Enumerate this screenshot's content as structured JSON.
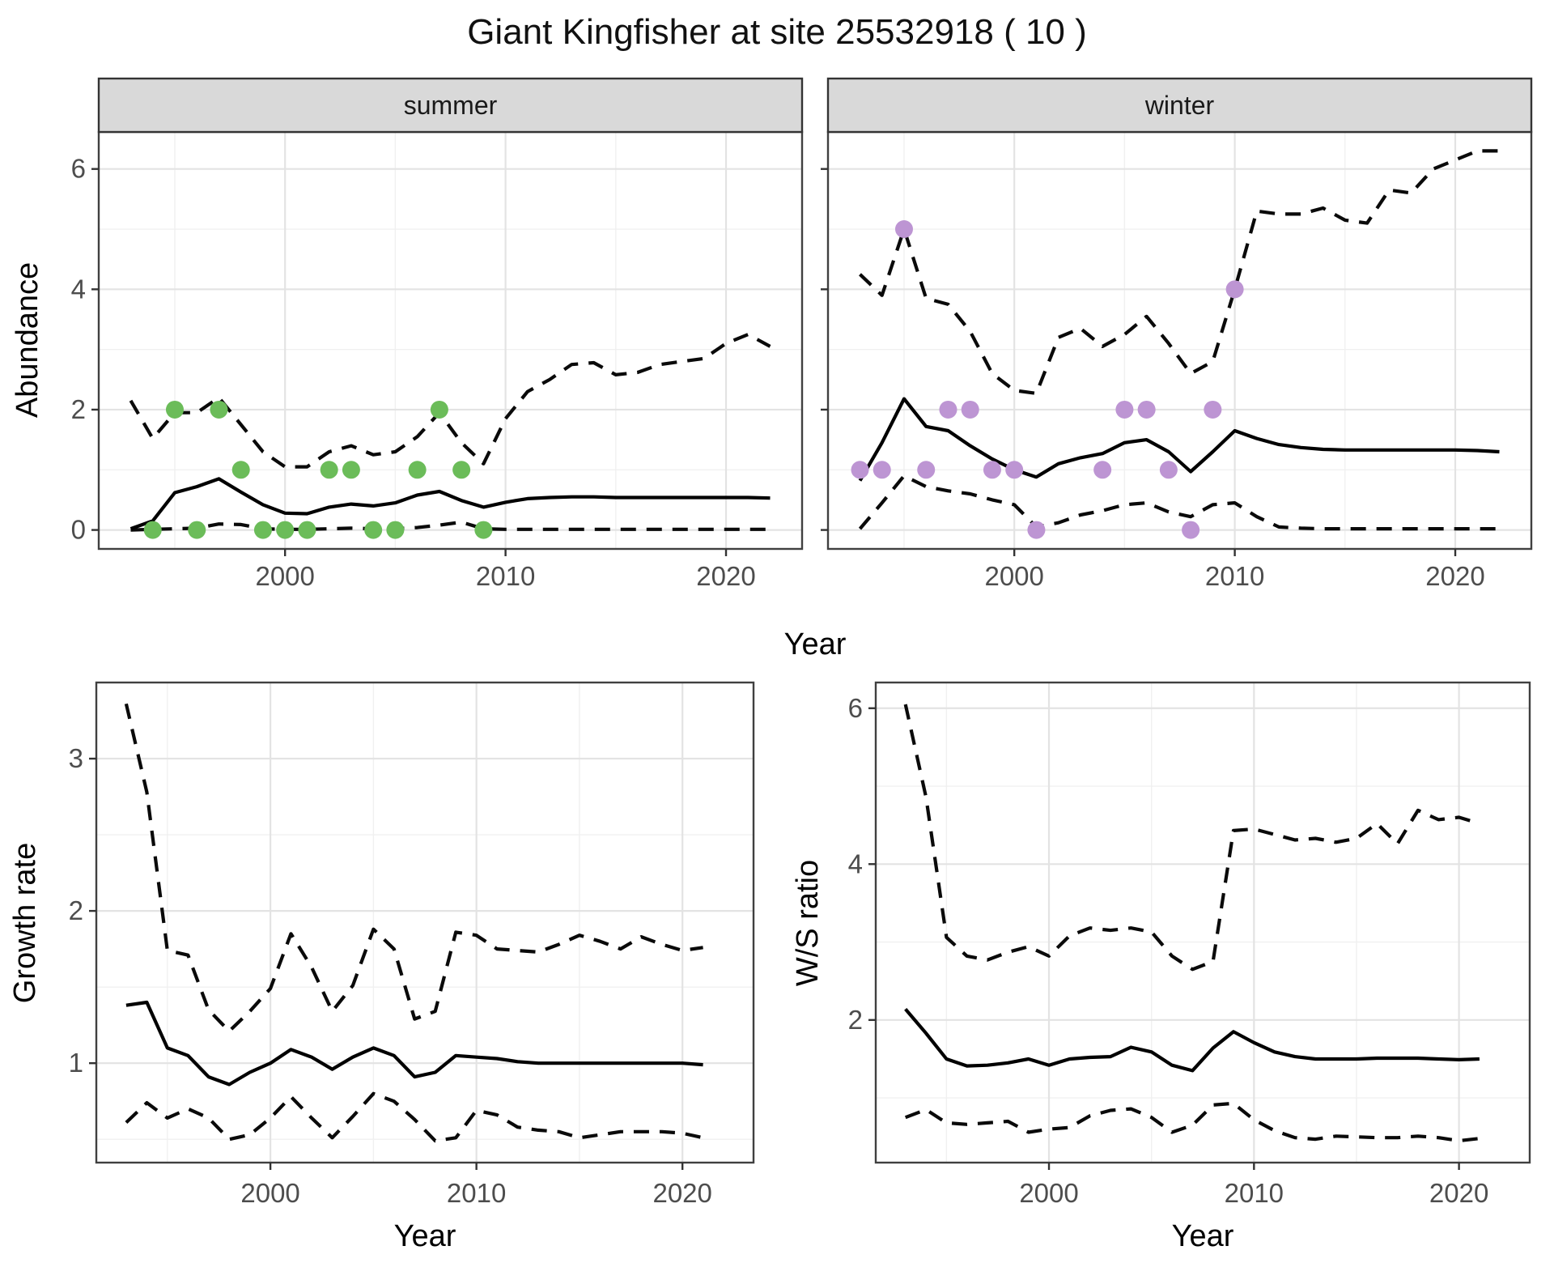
{
  "title": "Giant Kingfisher at site 25532918 ( 10 )",
  "axes": {
    "x_label": "Year",
    "abundance_label": "Abundance",
    "growth_label": "Growth rate",
    "ws_label": "W/S ratio"
  },
  "facets": {
    "summer": "summer",
    "winter": "winter"
  },
  "colors": {
    "summer_points": "#6bbc59",
    "winter_points": "#bd95d3",
    "line": "#000000",
    "ci_line": "#0a0a0a",
    "grid_major": "#e3e3e3",
    "grid_minor": "#f0f0f0",
    "strip_fill": "#d9d9d9",
    "strip_border": "#333333",
    "panel_border": "#404040",
    "tick_text": "#4d4d4d",
    "tick_mark": "#333333",
    "background": "#ffffff"
  },
  "chart_data": [
    {
      "id": "summer",
      "type": "line",
      "facet_label": "summer",
      "xlabel": "Year",
      "ylabel": "Abundance",
      "xlim": [
        1991.55,
        2023.45
      ],
      "ylim": [
        -0.315,
        6.615
      ],
      "x_major": [
        2000,
        2010,
        2020
      ],
      "x_major_labels": [
        "2000",
        "2010",
        "2020"
      ],
      "x_minor": [
        1995,
        2005,
        2015
      ],
      "y_major": [
        0,
        2,
        4,
        6
      ],
      "y_major_labels": [
        "0",
        "2",
        "4",
        "6"
      ],
      "y_minor": [
        1,
        3,
        5
      ],
      "show_y_tick_labels": true,
      "legend": "none",
      "grid": "on",
      "point_color": "#6bbc59",
      "years": [
        1993,
        1994,
        1995,
        1996,
        1997,
        1998,
        1999,
        2000,
        2001,
        2002,
        2003,
        2004,
        2005,
        2006,
        2007,
        2008,
        2009,
        2010,
        2011,
        2012,
        2013,
        2014,
        2015,
        2016,
        2017,
        2018,
        2019,
        2020,
        2021,
        2022
      ],
      "mean": [
        0.02,
        0.15,
        0.62,
        0.72,
        0.85,
        0.63,
        0.42,
        0.28,
        0.27,
        0.38,
        0.43,
        0.4,
        0.45,
        0.58,
        0.64,
        0.49,
        0.38,
        0.46,
        0.52,
        0.54,
        0.55,
        0.55,
        0.54,
        0.54,
        0.54,
        0.54,
        0.54,
        0.54,
        0.54,
        0.53
      ],
      "upper_ci": [
        2.15,
        1.52,
        1.95,
        1.95,
        2.2,
        1.75,
        1.3,
        1.05,
        1.05,
        1.3,
        1.4,
        1.25,
        1.3,
        1.55,
        1.95,
        1.45,
        1.1,
        1.85,
        2.3,
        2.5,
        2.75,
        2.78,
        2.58,
        2.62,
        2.75,
        2.8,
        2.85,
        3.1,
        3.25,
        3.05
      ],
      "lower_ci": [
        0.0,
        0.01,
        0.02,
        0.03,
        0.1,
        0.09,
        0.02,
        0.01,
        0.01,
        0.02,
        0.03,
        0.02,
        0.02,
        0.04,
        0.08,
        0.13,
        0.02,
        0.01,
        0.01,
        0.01,
        0.01,
        0.01,
        0.01,
        0.01,
        0.01,
        0.01,
        0.01,
        0.01,
        0.01,
        0.01
      ],
      "observations": [
        [
          1994,
          0
        ],
        [
          1995,
          2
        ],
        [
          1996,
          0
        ],
        [
          1997,
          2
        ],
        [
          1998,
          1
        ],
        [
          1999,
          0
        ],
        [
          2000,
          0
        ],
        [
          2001,
          0
        ],
        [
          2002,
          1
        ],
        [
          2003,
          1
        ],
        [
          2004,
          0
        ],
        [
          2005,
          0
        ],
        [
          2006,
          1
        ],
        [
          2007,
          2
        ],
        [
          2008,
          1
        ],
        [
          2009,
          0
        ]
      ]
    },
    {
      "id": "winter",
      "type": "line",
      "facet_label": "winter",
      "xlabel": "Year",
      "ylabel": "Abundance",
      "xlim": [
        1991.55,
        2023.45
      ],
      "ylim": [
        -0.315,
        6.615
      ],
      "x_major": [
        2000,
        2010,
        2020
      ],
      "x_major_labels": [
        "2000",
        "2010",
        "2020"
      ],
      "x_minor": [
        1995,
        2005,
        2015
      ],
      "y_major": [
        0,
        2,
        4,
        6
      ],
      "y_major_labels": [
        "0",
        "2",
        "4",
        "6"
      ],
      "y_minor": [
        1,
        3,
        5
      ],
      "show_y_tick_labels": false,
      "legend": "none",
      "grid": "on",
      "point_color": "#bd95d3",
      "years": [
        1993,
        1994,
        1995,
        1996,
        1997,
        1998,
        1999,
        2000,
        2001,
        2002,
        2003,
        2004,
        2005,
        2006,
        2007,
        2008,
        2009,
        2010,
        2011,
        2012,
        2013,
        2014,
        2015,
        2016,
        2017,
        2018,
        2019,
        2020,
        2021,
        2022
      ],
      "mean": [
        0.82,
        1.45,
        2.18,
        1.72,
        1.65,
        1.4,
        1.18,
        1.0,
        0.88,
        1.1,
        1.2,
        1.27,
        1.45,
        1.5,
        1.3,
        0.97,
        1.3,
        1.65,
        1.52,
        1.42,
        1.37,
        1.34,
        1.33,
        1.33,
        1.33,
        1.33,
        1.33,
        1.33,
        1.32,
        1.3
      ],
      "upper_ci": [
        4.25,
        3.9,
        5.0,
        3.85,
        3.75,
        3.3,
        2.6,
        2.32,
        2.27,
        3.2,
        3.35,
        3.05,
        3.25,
        3.55,
        3.1,
        2.6,
        2.8,
        4.0,
        5.3,
        5.25,
        5.25,
        5.35,
        5.15,
        5.1,
        5.65,
        5.6,
        6.0,
        6.15,
        6.3,
        6.3
      ],
      "lower_ci": [
        0.02,
        0.45,
        0.9,
        0.72,
        0.65,
        0.6,
        0.5,
        0.42,
        0.05,
        0.12,
        0.25,
        0.32,
        0.42,
        0.45,
        0.3,
        0.22,
        0.42,
        0.45,
        0.22,
        0.05,
        0.03,
        0.02,
        0.02,
        0.02,
        0.02,
        0.02,
        0.02,
        0.02,
        0.02,
        0.02
      ],
      "observations": [
        [
          1993,
          1
        ],
        [
          1994,
          1
        ],
        [
          1995,
          5
        ],
        [
          1996,
          1
        ],
        [
          1997,
          2
        ],
        [
          1998,
          2
        ],
        [
          1999,
          1
        ],
        [
          2000,
          1
        ],
        [
          2001,
          0
        ],
        [
          2004,
          1
        ],
        [
          2005,
          2
        ],
        [
          2006,
          2
        ],
        [
          2007,
          1
        ],
        [
          2008,
          0
        ],
        [
          2009,
          2
        ],
        [
          2010,
          4
        ]
      ]
    },
    {
      "id": "growth",
      "type": "line",
      "facet_label": null,
      "xlabel": "Year",
      "ylabel": "Growth rate",
      "xlim": [
        1991.55,
        2023.45
      ],
      "ylim": [
        0.347,
        3.5
      ],
      "x_major": [
        2000,
        2010,
        2020
      ],
      "x_major_labels": [
        "2000",
        "2010",
        "2020"
      ],
      "x_minor": [
        1995,
        2005,
        2015
      ],
      "y_major": [
        1,
        2,
        3
      ],
      "y_major_labels": [
        "1",
        "2",
        "3"
      ],
      "y_minor": [
        0.5,
        1.5,
        2.5
      ],
      "show_y_tick_labels": true,
      "legend": "none",
      "grid": "on",
      "point_color": null,
      "years": [
        1993,
        1994,
        1995,
        1996,
        1997,
        1998,
        1999,
        2000,
        2001,
        2002,
        2003,
        2004,
        2005,
        2006,
        2007,
        2008,
        2009,
        2010,
        2011,
        2012,
        2013,
        2014,
        2015,
        2016,
        2017,
        2018,
        2019,
        2020,
        2021
      ],
      "mean": [
        1.38,
        1.4,
        1.1,
        1.05,
        0.91,
        0.86,
        0.94,
        1.0,
        1.09,
        1.04,
        0.96,
        1.04,
        1.1,
        1.05,
        0.91,
        0.94,
        1.05,
        1.04,
        1.03,
        1.01,
        1.0,
        1.0,
        1.0,
        1.0,
        1.0,
        1.0,
        1.0,
        1.0,
        0.99
      ],
      "upper_ci": [
        3.36,
        2.78,
        1.74,
        1.71,
        1.35,
        1.21,
        1.34,
        1.49,
        1.85,
        1.63,
        1.34,
        1.51,
        1.88,
        1.75,
        1.29,
        1.34,
        1.86,
        1.84,
        1.75,
        1.74,
        1.73,
        1.78,
        1.84,
        1.8,
        1.75,
        1.83,
        1.78,
        1.74,
        1.76
      ],
      "lower_ci": [
        0.61,
        0.74,
        0.64,
        0.7,
        0.64,
        0.5,
        0.53,
        0.64,
        0.78,
        0.64,
        0.51,
        0.65,
        0.8,
        0.75,
        0.63,
        0.49,
        0.51,
        0.69,
        0.66,
        0.58,
        0.56,
        0.55,
        0.51,
        0.53,
        0.55,
        0.55,
        0.55,
        0.54,
        0.51
      ],
      "observations": []
    },
    {
      "id": "ws",
      "type": "line",
      "facet_label": null,
      "xlabel": "Year",
      "ylabel": "W/S ratio",
      "xlim": [
        1991.55,
        2023.45
      ],
      "ylim": [
        0.17,
        6.33
      ],
      "x_major": [
        2000,
        2010,
        2020
      ],
      "x_major_labels": [
        "2000",
        "2010",
        "2020"
      ],
      "x_minor": [
        1995,
        2005,
        2015
      ],
      "y_major": [
        2,
        4,
        6
      ],
      "y_major_labels": [
        "2",
        "4",
        "6"
      ],
      "y_minor": [
        1,
        3,
        5
      ],
      "show_y_tick_labels": true,
      "legend": "none",
      "grid": "on",
      "point_color": null,
      "years": [
        1993,
        1994,
        1995,
        1996,
        1997,
        1998,
        1999,
        2000,
        2001,
        2002,
        2003,
        2004,
        2005,
        2006,
        2007,
        2008,
        2009,
        2010,
        2011,
        2012,
        2013,
        2014,
        2015,
        2016,
        2017,
        2018,
        2019,
        2020,
        2021
      ],
      "mean": [
        2.14,
        1.83,
        1.5,
        1.41,
        1.42,
        1.45,
        1.5,
        1.42,
        1.5,
        1.52,
        1.53,
        1.65,
        1.59,
        1.42,
        1.35,
        1.64,
        1.85,
        1.71,
        1.59,
        1.53,
        1.5,
        1.5,
        1.5,
        1.51,
        1.51,
        1.51,
        1.5,
        1.49,
        1.5
      ],
      "upper_ci": [
        6.05,
        4.86,
        3.06,
        2.82,
        2.77,
        2.87,
        2.94,
        2.82,
        3.08,
        3.18,
        3.15,
        3.18,
        3.13,
        2.82,
        2.65,
        2.75,
        4.43,
        4.45,
        4.38,
        4.31,
        4.33,
        4.28,
        4.33,
        4.52,
        4.26,
        4.69,
        4.57,
        4.6,
        4.52
      ],
      "lower_ci": [
        0.75,
        0.85,
        0.68,
        0.66,
        0.68,
        0.7,
        0.56,
        0.6,
        0.62,
        0.77,
        0.84,
        0.86,
        0.75,
        0.56,
        0.65,
        0.91,
        0.93,
        0.72,
        0.58,
        0.49,
        0.47,
        0.51,
        0.5,
        0.49,
        0.49,
        0.51,
        0.49,
        0.45,
        0.48
      ],
      "observations": []
    }
  ]
}
